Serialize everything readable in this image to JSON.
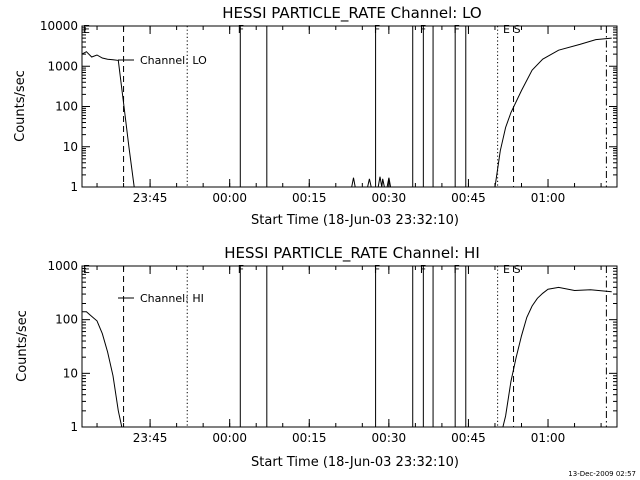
{
  "chart_data": [
    {
      "type": "line",
      "title": "HESSI PARTICLE_RATE Channel: LO",
      "xlabel": "Start Time (18-Jun-03 23:32:10)",
      "ylabel": "Counts/sec",
      "y_scale": "log",
      "ylim": [
        1,
        10000
      ],
      "y_ticks": [
        "1",
        "10",
        "100",
        "1000",
        "10000"
      ],
      "xlim": [
        "23:32:10",
        "01:13:00"
      ],
      "x_ticks": [
        "23:45",
        "00:00",
        "00:15",
        "00:30",
        "00:45",
        "01:00"
      ],
      "legend": "Channel: LO",
      "legend_position": "top-left",
      "series": [
        {
          "name": "Channel: LO",
          "segments": [
            [
              [
                "23:32:10",
                2000
              ],
              [
                "23:33:00",
                2300
              ],
              [
                "23:34:00",
                1700
              ],
              [
                "23:35:00",
                1900
              ],
              [
                "23:36:00",
                1600
              ],
              [
                "23:37:00",
                1500
              ],
              [
                "23:38:00",
                1450
              ],
              [
                "23:39:00",
                1400
              ],
              [
                "23:40:00",
                120
              ],
              [
                "23:41:00",
                10
              ],
              [
                "23:42:00",
                1
              ]
            ],
            [
              [
                "00:23:00",
                1
              ],
              [
                "00:23:20",
                1.7
              ],
              [
                "00:23:40",
                1
              ]
            ],
            [
              [
                "00:26:00",
                1
              ],
              [
                "00:26:20",
                1.6
              ],
              [
                "00:26:40",
                1
              ]
            ],
            [
              [
                "00:28:00",
                1
              ],
              [
                "00:28:20",
                1.8
              ],
              [
                "00:28:40",
                1
              ],
              [
                "00:28:50",
                1.6
              ],
              [
                "00:29:10",
                1
              ]
            ],
            [
              [
                "00:29:40",
                1
              ],
              [
                "00:30:00",
                1.7
              ],
              [
                "00:30:20",
                1
              ]
            ],
            [
              [
                "00:50:00",
                1
              ],
              [
                "00:51:00",
                8
              ],
              [
                "00:52:00",
                30
              ],
              [
                "00:53:00",
                70
              ],
              [
                "00:55:00",
                250
              ],
              [
                "00:57:00",
                800
              ],
              [
                "00:59:00",
                1500
              ],
              [
                "01:02:00",
                2500
              ],
              [
                "01:06:00",
                3500
              ],
              [
                "01:09:00",
                4600
              ],
              [
                "01:12:00",
                5000
              ]
            ]
          ]
        }
      ],
      "flags": [
        {
          "label": "E",
          "time": "23:32:10"
        },
        {
          "label": "F",
          "time": "00:01:20"
        },
        {
          "label": "F",
          "time": "00:27:00"
        },
        {
          "label": "F",
          "time": "00:35:40"
        },
        {
          "label": "F",
          "time": "00:42:00"
        },
        {
          "label": "E",
          "time": "00:51:20"
        },
        {
          "label": "S",
          "time": "00:53:20"
        }
      ],
      "markers": [
        {
          "time": "23:40:00",
          "style": "dashed"
        },
        {
          "time": "23:52:00",
          "style": "dotted"
        },
        {
          "time": "00:02:00",
          "style": "solid"
        },
        {
          "time": "00:07:00",
          "style": "solid"
        },
        {
          "time": "00:27:30",
          "style": "solid"
        },
        {
          "time": "00:34:30",
          "style": "solid"
        },
        {
          "time": "00:36:30",
          "style": "solid"
        },
        {
          "time": "00:38:20",
          "style": "solid"
        },
        {
          "time": "00:42:30",
          "style": "solid"
        },
        {
          "time": "00:44:30",
          "style": "solid"
        },
        {
          "time": "00:50:30",
          "style": "dotted"
        },
        {
          "time": "00:53:30",
          "style": "dashed"
        },
        {
          "time": "01:11:00",
          "style": "dash-dot"
        }
      ]
    },
    {
      "type": "line",
      "title": "HESSI PARTICLE_RATE Channel: HI",
      "xlabel": "Start Time (18-Jun-03 23:32:10)",
      "ylabel": "Counts/sec",
      "y_scale": "log",
      "ylim": [
        1,
        1000
      ],
      "y_ticks": [
        "1",
        "10",
        "100",
        "1000"
      ],
      "xlim": [
        "23:32:10",
        "01:13:00"
      ],
      "x_ticks": [
        "23:45",
        "00:00",
        "00:15",
        "00:30",
        "00:45",
        "01:00"
      ],
      "legend": "Channel: HI",
      "legend_position": "top-left",
      "series": [
        {
          "name": "Channel: HI",
          "segments": [
            [
              [
                "23:32:10",
                140
              ],
              [
                "23:33:00",
                140
              ],
              [
                "23:34:00",
                115
              ],
              [
                "23:35:00",
                95
              ],
              [
                "23:36:00",
                55
              ],
              [
                "23:37:00",
                25
              ],
              [
                "23:38:00",
                9
              ],
              [
                "23:39:00",
                2
              ],
              [
                "23:39:40",
                1
              ]
            ],
            [
              [
                "00:51:30",
                1
              ],
              [
                "00:52:00",
                1.6
              ],
              [
                "00:53:00",
                7
              ],
              [
                "00:54:00",
                20
              ],
              [
                "00:55:00",
                50
              ],
              [
                "00:56:00",
                110
              ],
              [
                "00:57:00",
                180
              ],
              [
                "00:58:00",
                250
              ],
              [
                "00:59:00",
                310
              ],
              [
                "01:00:00",
                370
              ],
              [
                "01:02:00",
                400
              ],
              [
                "01:05:00",
                350
              ],
              [
                "01:08:00",
                360
              ],
              [
                "01:12:00",
                330
              ]
            ]
          ]
        }
      ],
      "flags": [
        {
          "label": "E",
          "time": "23:32:10"
        },
        {
          "label": "F",
          "time": "00:01:20"
        },
        {
          "label": "F",
          "time": "00:27:00"
        },
        {
          "label": "F",
          "time": "00:35:40"
        },
        {
          "label": "F",
          "time": "00:42:00"
        },
        {
          "label": "E",
          "time": "00:51:20"
        },
        {
          "label": "S",
          "time": "00:53:20"
        }
      ],
      "markers": [
        {
          "time": "23:40:00",
          "style": "dashed"
        },
        {
          "time": "23:52:00",
          "style": "dotted"
        },
        {
          "time": "00:02:00",
          "style": "solid"
        },
        {
          "time": "00:07:00",
          "style": "solid"
        },
        {
          "time": "00:27:30",
          "style": "solid"
        },
        {
          "time": "00:34:30",
          "style": "solid"
        },
        {
          "time": "00:36:30",
          "style": "solid"
        },
        {
          "time": "00:38:20",
          "style": "solid"
        },
        {
          "time": "00:42:30",
          "style": "solid"
        },
        {
          "time": "00:44:30",
          "style": "solid"
        },
        {
          "time": "00:50:30",
          "style": "dotted"
        },
        {
          "time": "00:53:30",
          "style": "dashed"
        },
        {
          "time": "01:11:00",
          "style": "dash-dot"
        }
      ]
    }
  ],
  "footer": {
    "timestamp": "13-Dec-2009 02:57"
  }
}
